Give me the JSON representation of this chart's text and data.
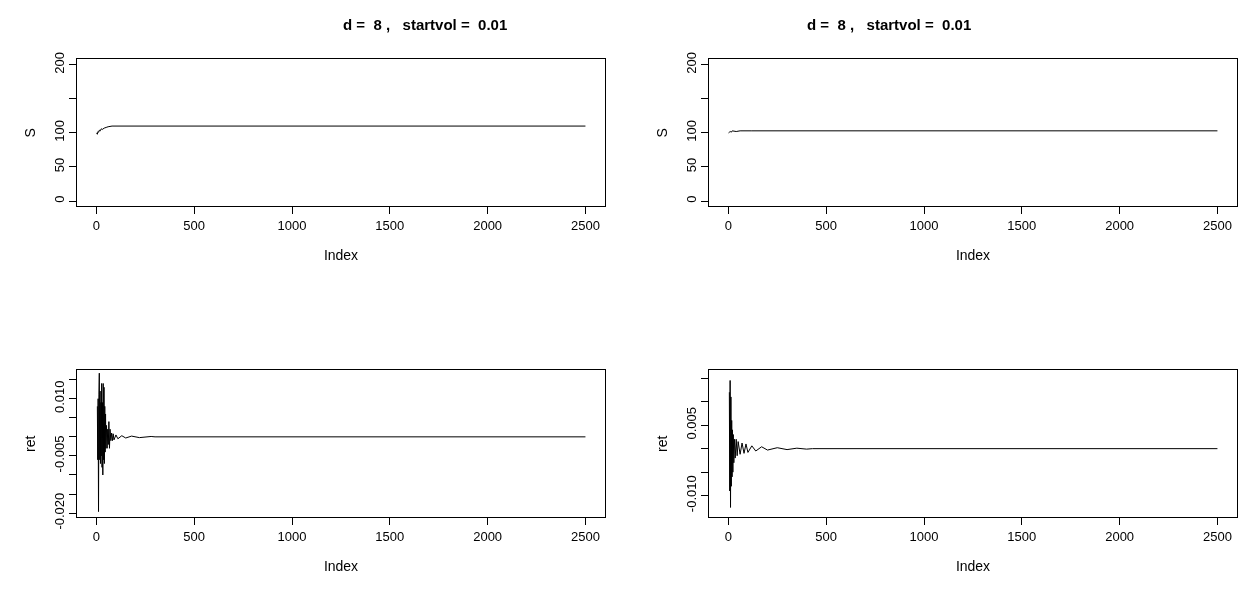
{
  "chart_data": [
    {
      "type": "line",
      "title": "d =  8 ,   startvol =  0.01",
      "xlabel": "Index",
      "ylabel": "S",
      "xlim": [
        -99,
        2600
      ],
      "xticks": [
        0,
        500,
        1000,
        1500,
        2000,
        2500
      ],
      "ylim": [
        -8,
        208
      ],
      "yticks": [
        0,
        50,
        100,
        {
          "value": 150,
          "label": null
        },
        200
      ],
      "series": [
        {
          "color": "#000000",
          "x": [
            1,
            5,
            8,
            12,
            15,
            20,
            25,
            30,
            40,
            50,
            60,
            80,
            2500
          ],
          "values": [
            100,
            98,
            102,
            101,
            104,
            103,
            106,
            105,
            107,
            108,
            109,
            110,
            110
          ]
        }
      ]
    },
    {
      "type": "line",
      "title": "d =  8 ,   startvol =  0.01",
      "xlabel": "Index",
      "ylabel": "S",
      "xlim": [
        -99,
        2600
      ],
      "xticks": [
        0,
        500,
        1000,
        1500,
        2000,
        2500
      ],
      "ylim": [
        -8,
        208
      ],
      "yticks": [
        0,
        50,
        100,
        {
          "value": 150,
          "label": null
        },
        200
      ],
      "series": [
        {
          "color": "#000000",
          "x": [
            1,
            5,
            10,
            15,
            20,
            40,
            60,
            120,
            2500
          ],
          "values": [
            100,
            101,
            102,
            101,
            103,
            102,
            103,
            103,
            103
          ]
        }
      ]
    },
    {
      "type": "line",
      "xlabel": "Index",
      "ylabel": "ret",
      "xlim": [
        -99,
        2600
      ],
      "xticks": [
        0,
        500,
        1000,
        1500,
        2000,
        2500
      ],
      "ylim": [
        -0.0211,
        0.0175
      ],
      "yticks": [
        {
          "value": 0.015,
          "label": null
        },
        {
          "value": 0.01,
          "label": "0.010"
        },
        {
          "value": 0.005,
          "label": null
        },
        {
          "value": 0,
          "label": null
        },
        {
          "value": -0.005,
          "label": "-0.005"
        },
        {
          "value": -0.01,
          "label": null
        },
        {
          "value": -0.015,
          "label": null
        },
        {
          "value": -0.02,
          "label": "-0.020"
        }
      ],
      "series": [
        {
          "color": "#000000",
          "x": [
            5,
            7,
            9,
            11,
            13,
            15,
            17,
            19,
            21,
            23,
            25,
            27,
            29,
            31,
            33,
            35,
            37,
            39,
            41,
            43,
            45,
            47,
            49,
            52,
            55,
            58,
            61,
            64,
            67,
            70,
            74,
            78,
            82,
            86,
            90,
            100,
            110,
            130,
            150,
            180,
            220,
            280,
            300,
            2500
          ],
          "values": [
            0.008,
            -0.006,
            0.01,
            -0.0196,
            0.011,
            0.0167,
            -0.006,
            0.012,
            -0.007,
            0.009,
            -0.005,
            0.014,
            -0.008,
            0.009,
            -0.01,
            0.014,
            -0.006,
            0.013,
            -0.007,
            0.008,
            -0.004,
            0.006,
            -0.003,
            0.003,
            -0.003,
            0.002,
            -0.002,
            0.004,
            -0.003,
            0.002,
            -0.001,
            0.001,
            -0.001,
            0.0008,
            -0.0008,
            0.0005,
            -0.0005,
            0.0003,
            -0.0003,
            0.0002,
            -0.0002,
            0.0001,
            0,
            0
          ]
        }
      ]
    },
    {
      "type": "line",
      "xlabel": "Index",
      "ylabel": "ret",
      "xlim": [
        -99,
        2600
      ],
      "xticks": [
        0,
        500,
        1000,
        1500,
        2000,
        2500
      ],
      "ylim": [
        -0.0146,
        0.0167
      ],
      "yticks": [
        {
          "value": 0.015,
          "label": null
        },
        {
          "value": 0.01,
          "label": null
        },
        {
          "value": 0.005,
          "label": "0.005"
        },
        {
          "value": 0,
          "label": null
        },
        {
          "value": -0.005,
          "label": null
        },
        {
          "value": -0.01,
          "label": "-0.010"
        }
      ],
      "series": [
        {
          "color": "#000000",
          "x": [
            5,
            7,
            9,
            11,
            13,
            15,
            17,
            19,
            21,
            23,
            25,
            28,
            31,
            35,
            40,
            45,
            50,
            60,
            70,
            80,
            90,
            100,
            120,
            140,
            170,
            200,
            250,
            300,
            350,
            400,
            430,
            2500
          ],
          "values": [
            0.012,
            -0.009,
            0.0145,
            -0.0125,
            0.011,
            -0.008,
            0.006,
            -0.006,
            0.004,
            -0.005,
            0.003,
            -0.003,
            0.002,
            -0.002,
            0.002,
            -0.0015,
            0.0015,
            -0.0012,
            0.0012,
            -0.001,
            0.001,
            -0.0008,
            0.0006,
            -0.0005,
            0.0004,
            -0.0003,
            0.0002,
            -0.0002,
            0.0001,
            -0.0001,
            0,
            0
          ]
        }
      ]
    }
  ]
}
